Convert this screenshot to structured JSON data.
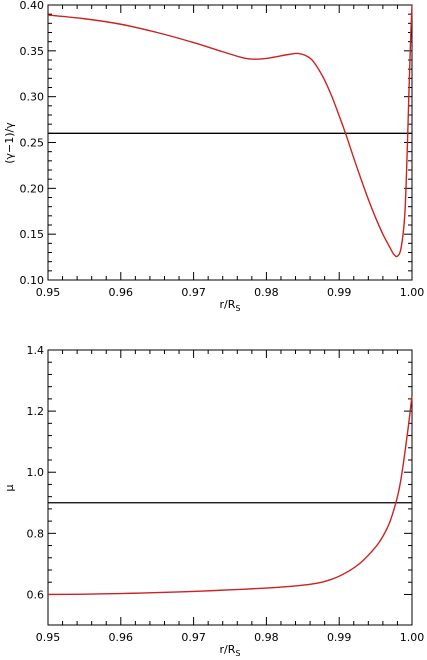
{
  "colors": {
    "curve": "#cc2222",
    "reference": "#000000",
    "axis": "#000000"
  },
  "chart_data": [
    {
      "type": "line",
      "xlabel": "r/R",
      "xlabel_sub": "S",
      "ylabel": "(γ−1)/γ",
      "xlim": [
        0.95,
        1.0
      ],
      "ylim": [
        0.1,
        0.4
      ],
      "xticks": [
        0.95,
        0.96,
        0.97,
        0.98,
        0.99,
        1.0
      ],
      "xtick_labels": [
        "0.95",
        "0.96",
        "0.97",
        "0.98",
        "0.99",
        "1.00"
      ],
      "yticks": [
        0.1,
        0.15,
        0.2,
        0.25,
        0.3,
        0.35,
        0.4
      ],
      "ytick_labels": [
        "0.10",
        "0.15",
        "0.20",
        "0.25",
        "0.30",
        "0.35",
        "0.40"
      ],
      "hline": 0.26,
      "series": [
        {
          "x": [
            0.95,
            0.955,
            0.96,
            0.965,
            0.97,
            0.974,
            0.977,
            0.979,
            0.981,
            0.983,
            0.9845,
            0.986,
            0.987,
            0.988,
            0.989,
            0.99,
            0.991,
            0.992,
            0.993,
            0.994,
            0.995,
            0.996,
            0.997,
            0.9975,
            0.998,
            0.9985,
            0.999,
            0.9993,
            0.9996,
            0.9998,
            1.0
          ],
          "y": [
            0.389,
            0.385,
            0.379,
            0.37,
            0.359,
            0.349,
            0.342,
            0.341,
            0.343,
            0.346,
            0.347,
            0.342,
            0.332,
            0.318,
            0.3,
            0.279,
            0.257,
            0.233,
            0.21,
            0.188,
            0.168,
            0.15,
            0.135,
            0.128,
            0.126,
            0.135,
            0.17,
            0.23,
            0.31,
            0.36,
            0.4
          ]
        }
      ]
    },
    {
      "type": "line",
      "xlabel": "r/R",
      "xlabel_sub": "S",
      "ylabel": "μ",
      "xlim": [
        0.95,
        1.0
      ],
      "ylim": [
        0.5,
        1.4
      ],
      "xticks": [
        0.95,
        0.96,
        0.97,
        0.98,
        0.99,
        1.0
      ],
      "xtick_labels": [
        "0.95",
        "0.96",
        "0.97",
        "0.98",
        "0.99",
        "1.00"
      ],
      "yticks": [
        0.6,
        0.8,
        1.0,
        1.2,
        1.4
      ],
      "ytick_labels": [
        "0.6",
        "0.8",
        "1.0",
        "1.2",
        "1.4"
      ],
      "hline": 0.9,
      "series": [
        {
          "x": [
            0.95,
            0.955,
            0.96,
            0.965,
            0.97,
            0.975,
            0.98,
            0.984,
            0.987,
            0.989,
            0.991,
            0.993,
            0.995,
            0.996,
            0.997,
            0.998,
            0.9985,
            0.999,
            0.9995,
            1.0
          ],
          "y": [
            0.6,
            0.601,
            0.603,
            0.606,
            0.61,
            0.615,
            0.621,
            0.628,
            0.637,
            0.65,
            0.672,
            0.705,
            0.755,
            0.79,
            0.84,
            0.92,
            0.98,
            1.06,
            1.15,
            1.25
          ]
        }
      ]
    }
  ]
}
